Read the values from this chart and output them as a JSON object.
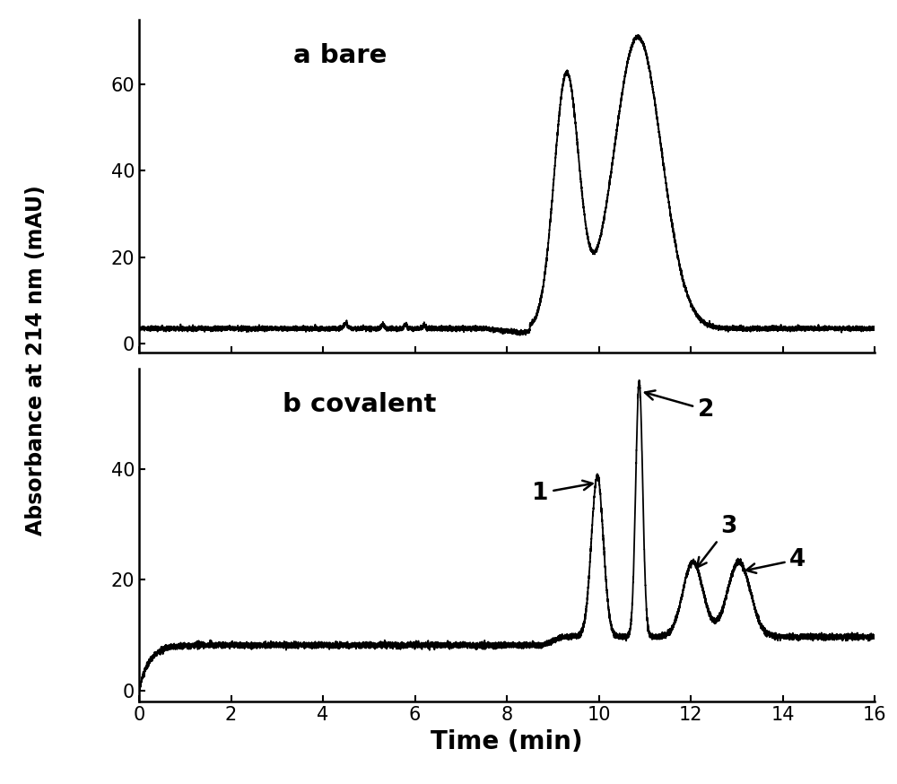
{
  "title_a": "a bare",
  "title_b": "b covalent",
  "ylabel": "Absorbance at 214 nm (mAU)",
  "xlabel": "Time (min)",
  "xlim": [
    0,
    16
  ],
  "ylim_a": [
    -2,
    75
  ],
  "ylim_b": [
    -2,
    58
  ],
  "yticks_a": [
    0,
    20,
    40,
    60
  ],
  "yticks_b": [
    0,
    20,
    40
  ],
  "xticks": [
    0,
    2,
    4,
    6,
    8,
    10,
    12,
    14,
    16
  ],
  "bg_color": "#ffffff",
  "line_color": "#000000",
  "label_fontsize": 17,
  "tick_fontsize": 15,
  "title_fontsize": 21,
  "annot_fontsize": 19
}
